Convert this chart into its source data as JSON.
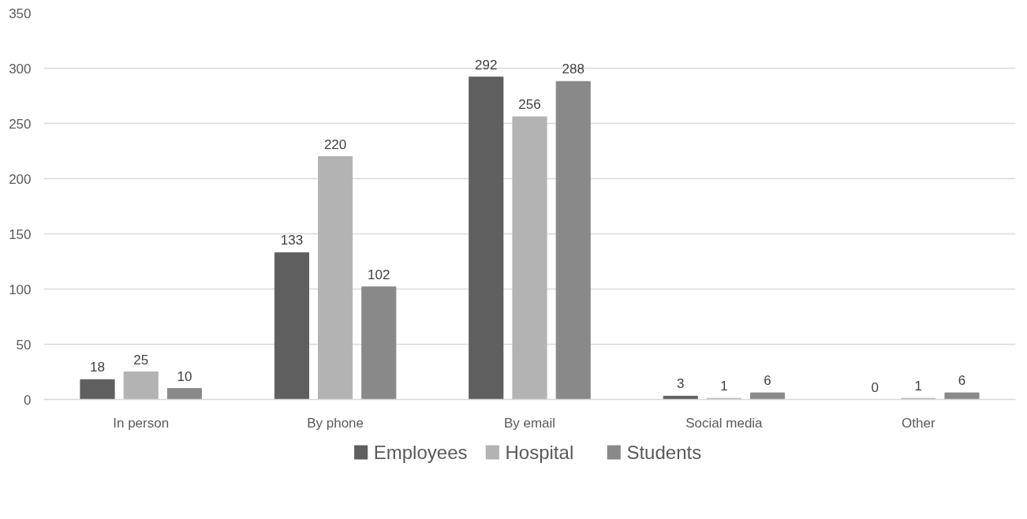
{
  "chart_data": {
    "type": "bar",
    "categories": [
      "In person",
      "By phone",
      "By email",
      "Social media",
      "Other"
    ],
    "series": [
      {
        "name": "Employees",
        "color": "#5f5f5f",
        "values": [
          18,
          133,
          292,
          3,
          0
        ]
      },
      {
        "name": "Hospital",
        "color": "#b3b3b3",
        "values": [
          25,
          220,
          256,
          1,
          1
        ]
      },
      {
        "name": "Students",
        "color": "#898989",
        "values": [
          10,
          102,
          288,
          6,
          6
        ]
      }
    ],
    "ylim": [
      0,
      350
    ],
    "yticks": [
      0,
      50,
      100,
      150,
      200,
      250,
      300,
      350
    ],
    "grid": "y",
    "legend": "bottom",
    "data_labels": true
  }
}
